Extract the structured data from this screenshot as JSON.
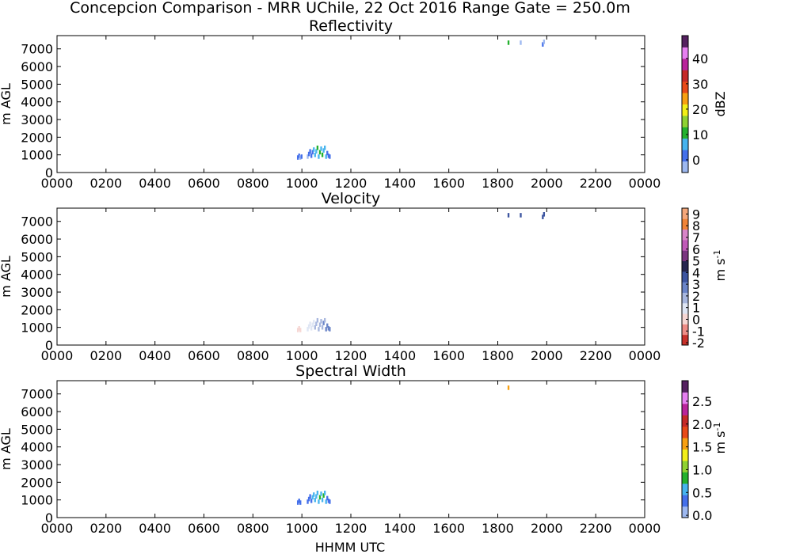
{
  "figure": {
    "suptitle": "Concepcion Comparison - MRR UChile, 22 Oct 2016 Range Gate = 250.0m",
    "xlabel": "HHMM UTC"
  },
  "chart_data": [
    {
      "type": "heatmap",
      "title": "Reflectivity",
      "ylabel": "m AGL",
      "xlim": [
        0,
        24
      ],
      "ylim": [
        0,
        7750
      ],
      "xticklabels": [
        "0000",
        "0200",
        "0400",
        "0600",
        "0800",
        "1000",
        "1200",
        "1400",
        "1600",
        "1800",
        "2000",
        "2200",
        "0000"
      ],
      "yticks": [
        0,
        1000,
        2000,
        3000,
        4000,
        5000,
        6000,
        7000
      ],
      "colorbar": {
        "label": "dBZ",
        "range": [
          -5,
          49
        ],
        "ticks": [
          0,
          10,
          20,
          30,
          40
        ],
        "ticklabels": [
          "0",
          "10",
          "20",
          "30",
          "40"
        ],
        "cmap": [
          "#9db8f0",
          "#4570ea",
          "#47b4ee",
          "#23b12e",
          "#8fd233",
          "#f3ef18",
          "#f7a012",
          "#e84a18",
          "#c52a28",
          "#b9249b",
          "#e67ff0",
          "#552160"
        ]
      },
      "cells": [
        {
          "t": 9.8,
          "h": 850,
          "v": 0
        },
        {
          "t": 9.85,
          "h": 950,
          "v": 0
        },
        {
          "t": 9.9,
          "h": 850,
          "v": -1
        },
        {
          "t": 9.95,
          "h": 900,
          "v": 0
        },
        {
          "t": 10.2,
          "h": 900,
          "v": -1
        },
        {
          "t": 10.25,
          "h": 1050,
          "v": 0
        },
        {
          "t": 10.3,
          "h": 1200,
          "v": 1
        },
        {
          "t": 10.35,
          "h": 950,
          "v": 3
        },
        {
          "t": 10.4,
          "h": 1150,
          "v": 0
        },
        {
          "t": 10.45,
          "h": 1300,
          "v": 4
        },
        {
          "t": 10.5,
          "h": 1000,
          "v": 7
        },
        {
          "t": 10.55,
          "h": 1200,
          "v": 8
        },
        {
          "t": 10.6,
          "h": 1400,
          "v": 9
        },
        {
          "t": 10.65,
          "h": 900,
          "v": 8
        },
        {
          "t": 10.7,
          "h": 1150,
          "v": 10
        },
        {
          "t": 10.75,
          "h": 1350,
          "v": 6
        },
        {
          "t": 10.8,
          "h": 1000,
          "v": 11
        },
        {
          "t": 10.85,
          "h": 1250,
          "v": 8
        },
        {
          "t": 10.9,
          "h": 1400,
          "v": 5
        },
        {
          "t": 10.95,
          "h": 900,
          "v": 4
        },
        {
          "t": 11.0,
          "h": 1100,
          "v": 3
        },
        {
          "t": 11.05,
          "h": 950,
          "v": 1
        },
        {
          "t": 11.1,
          "h": 900,
          "v": 2
        },
        {
          "t": 18.4,
          "h": 7350,
          "v": 10
        },
        {
          "t": 18.9,
          "h": 7350,
          "v": -1
        },
        {
          "t": 19.8,
          "h": 7250,
          "v": 1
        },
        {
          "t": 19.85,
          "h": 7400,
          "v": -2
        }
      ]
    },
    {
      "type": "heatmap",
      "title": "Velocity",
      "ylabel": "m AGL",
      "xlim": [
        0,
        24
      ],
      "ylim": [
        0,
        7750
      ],
      "xticklabels": [
        "0000",
        "0200",
        "0400",
        "0600",
        "0800",
        "1000",
        "1200",
        "1400",
        "1600",
        "1800",
        "2000",
        "2200",
        "0000"
      ],
      "yticks": [
        0,
        1000,
        2000,
        3000,
        4000,
        5000,
        6000,
        7000
      ],
      "colorbar": {
        "label": "m s$^{-1}$",
        "range": [
          -2.2,
          9.5
        ],
        "ticks": [
          -2,
          -1,
          0,
          1,
          2,
          3,
          4,
          5,
          6,
          7,
          8,
          9
        ],
        "ticklabels": [
          "-2",
          "-1",
          "0",
          "1",
          "2",
          "3",
          "4",
          "5",
          "6",
          "7",
          "8",
          "9"
        ],
        "cmap": [
          "#c8302a",
          "#ed8c86",
          "#f6d7d4",
          "#dfe6f4",
          "#a8b7de",
          "#6b85c8",
          "#3d55a0",
          "#26264f",
          "#7a3580",
          "#c05ab8",
          "#d884c8",
          "#f08438",
          "#f5a77a"
        ]
      },
      "cells": [
        {
          "t": 9.8,
          "h": 850,
          "v": 0.2
        },
        {
          "t": 9.85,
          "h": 950,
          "v": 0.3
        },
        {
          "t": 9.9,
          "h": 850,
          "v": 0.4
        },
        {
          "t": 10.2,
          "h": 900,
          "v": 0.6
        },
        {
          "t": 10.25,
          "h": 1050,
          "v": 0.8
        },
        {
          "t": 10.3,
          "h": 1200,
          "v": 1.0
        },
        {
          "t": 10.35,
          "h": 950,
          "v": 1.2
        },
        {
          "t": 10.4,
          "h": 1150,
          "v": 1.1
        },
        {
          "t": 10.45,
          "h": 1300,
          "v": 1.3
        },
        {
          "t": 10.5,
          "h": 1000,
          "v": 1.5
        },
        {
          "t": 10.55,
          "h": 1200,
          "v": 1.4
        },
        {
          "t": 10.6,
          "h": 1400,
          "v": 1.6
        },
        {
          "t": 10.65,
          "h": 900,
          "v": 1.8
        },
        {
          "t": 10.7,
          "h": 1150,
          "v": 1.7
        },
        {
          "t": 10.75,
          "h": 1350,
          "v": 1.9
        },
        {
          "t": 10.8,
          "h": 1000,
          "v": 2.1
        },
        {
          "t": 10.85,
          "h": 1250,
          "v": 2.3
        },
        {
          "t": 10.9,
          "h": 1400,
          "v": 2.0
        },
        {
          "t": 10.95,
          "h": 900,
          "v": 2.4
        },
        {
          "t": 11.0,
          "h": 1100,
          "v": 2.6
        },
        {
          "t": 11.05,
          "h": 950,
          "v": 2.8
        },
        {
          "t": 11.1,
          "h": 900,
          "v": 3.0
        },
        {
          "t": 18.4,
          "h": 7350,
          "v": 3.2
        },
        {
          "t": 18.9,
          "h": 7350,
          "v": 3.5
        },
        {
          "t": 19.8,
          "h": 7250,
          "v": 3.3
        },
        {
          "t": 19.85,
          "h": 7400,
          "v": 3.6
        }
      ]
    },
    {
      "type": "heatmap",
      "title": "Spectral Width",
      "ylabel": "m AGL",
      "xlim": [
        0,
        24
      ],
      "ylim": [
        0,
        7750
      ],
      "xticklabels": [
        "0000",
        "0200",
        "0400",
        "0600",
        "0800",
        "1000",
        "1200",
        "1400",
        "1600",
        "1800",
        "2000",
        "2200",
        "0000"
      ],
      "yticks": [
        0,
        1000,
        2000,
        3000,
        4000,
        5000,
        6000,
        7000
      ],
      "colorbar": {
        "label": "m s$^{-1}$",
        "range": [
          -0.05,
          2.95
        ],
        "ticks": [
          0.0,
          0.5,
          1.0,
          1.5,
          2.0,
          2.5
        ],
        "ticklabels": [
          "0.0",
          "0.5",
          "1.0",
          "1.5",
          "2.0",
          "2.5"
        ],
        "cmap": [
          "#9db8f0",
          "#4570ea",
          "#47b4ee",
          "#23b12e",
          "#8fd233",
          "#f3ef18",
          "#f7a012",
          "#e84a18",
          "#c52a28",
          "#b9249b",
          "#e67ff0",
          "#552160"
        ]
      },
      "cells": [
        {
          "t": 9.8,
          "h": 850,
          "v": 0.2
        },
        {
          "t": 9.85,
          "h": 950,
          "v": 0.25
        },
        {
          "t": 9.9,
          "h": 850,
          "v": 0.2
        },
        {
          "t": 10.2,
          "h": 900,
          "v": 0.3
        },
        {
          "t": 10.25,
          "h": 1050,
          "v": 0.35
        },
        {
          "t": 10.3,
          "h": 1200,
          "v": 0.4
        },
        {
          "t": 10.35,
          "h": 950,
          "v": 0.3
        },
        {
          "t": 10.4,
          "h": 1150,
          "v": 0.5
        },
        {
          "t": 10.45,
          "h": 1300,
          "v": 0.45
        },
        {
          "t": 10.5,
          "h": 1000,
          "v": 0.55
        },
        {
          "t": 10.55,
          "h": 1200,
          "v": 0.6
        },
        {
          "t": 10.6,
          "h": 1400,
          "v": 0.5
        },
        {
          "t": 10.65,
          "h": 900,
          "v": 0.65
        },
        {
          "t": 10.7,
          "h": 1150,
          "v": 0.7
        },
        {
          "t": 10.75,
          "h": 1350,
          "v": 0.55
        },
        {
          "t": 10.8,
          "h": 1000,
          "v": 0.6
        },
        {
          "t": 10.85,
          "h": 1250,
          "v": 0.75
        },
        {
          "t": 10.9,
          "h": 1400,
          "v": 0.65
        },
        {
          "t": 10.95,
          "h": 900,
          "v": 0.5
        },
        {
          "t": 11.0,
          "h": 1100,
          "v": 0.4
        },
        {
          "t": 11.05,
          "h": 950,
          "v": 0.35
        },
        {
          "t": 11.1,
          "h": 900,
          "v": 0.3
        },
        {
          "t": 18.4,
          "h": 7350,
          "v": 1.5
        }
      ]
    }
  ]
}
